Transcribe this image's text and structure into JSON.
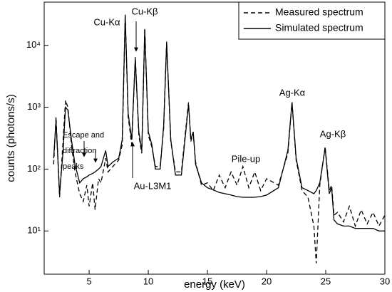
{
  "chart_data": {
    "type": "line",
    "xlabel": "energy (keV)",
    "ylabel": "counts (photons/s)",
    "log_y": true,
    "legend": "upper right",
    "xlim": [
      1.2,
      30
    ],
    "ylim": [
      2,
      50000
    ],
    "xticks": [
      5,
      10,
      15,
      20,
      25,
      30
    ],
    "yticks": [
      {
        "value": 10,
        "label": "10¹"
      },
      {
        "value": 100,
        "label": "10²"
      },
      {
        "value": 1000,
        "label": "10³"
      },
      {
        "value": 10000,
        "label": "10⁴"
      }
    ],
    "annotations": [
      "Cu-Kα",
      "Cu-Kβ",
      "Escape and",
      "diffraction",
      "peaks",
      "Pile-up",
      "Ag-Kα",
      "Ag-Kβ",
      "Au-L3M1"
    ],
    "x": [
      2.0,
      2.2,
      2.5,
      2.8,
      3.0,
      3.2,
      3.5,
      3.8,
      4.2,
      4.5,
      4.8,
      5.0,
      5.3,
      5.5,
      5.8,
      6.0,
      6.4,
      6.6,
      7.0,
      7.5,
      7.8,
      8.05,
      8.3,
      8.6,
      8.9,
      9.2,
      9.45,
      9.7,
      10.0,
      10.3,
      10.6,
      11.0,
      11.3,
      11.55,
      11.9,
      12.3,
      12.8,
      13.4,
      13.6,
      13.8,
      14.0,
      14.5,
      15,
      15.5,
      16,
      16.5,
      17,
      17.5,
      18,
      18.5,
      19,
      19.5,
      20,
      21,
      21.8,
      22.15,
      22.5,
      23,
      23.5,
      24,
      24.2,
      24.5,
      24.95,
      25.3,
      25.5,
      25.7,
      26,
      26.5,
      27,
      27.5,
      28,
      28.5,
      29,
      29.5,
      30
    ],
    "series": [
      {
        "name": "Measured spectrum",
        "color": "#000000",
        "dash": "6,4",
        "values": [
          120,
          700,
          35,
          300,
          1300,
          1000,
          250,
          90,
          40,
          30,
          55,
          25,
          60,
          22,
          70,
          60,
          150,
          90,
          110,
          140,
          250,
          32000,
          700,
          250,
          6500,
          350,
          180,
          19000,
          350,
          230,
          110,
          110,
          450,
          11500,
          280,
          90,
          90,
          1200,
          280,
          380,
          130,
          55,
          60,
          45,
          80,
          50,
          90,
          55,
          110,
          50,
          90,
          45,
          70,
          55,
          180,
          1200,
          140,
          45,
          35,
          12,
          3,
          55,
          230,
          45,
          55,
          18,
          20,
          14,
          25,
          12,
          22,
          13,
          20,
          12,
          18
        ]
      },
      {
        "name": "Simulated spectrum",
        "color": "#000000",
        "values": [
          150,
          600,
          40,
          200,
          1000,
          900,
          300,
          120,
          60,
          70,
          75,
          80,
          85,
          90,
          100,
          110,
          200,
          110,
          130,
          150,
          300,
          30000,
          800,
          300,
          6000,
          400,
          200,
          18000,
          400,
          250,
          100,
          100,
          500,
          11000,
          300,
          80,
          80,
          1100,
          300,
          400,
          120,
          60,
          50,
          46,
          42,
          40,
          38,
          36,
          35,
          35,
          35,
          36,
          38,
          50,
          200,
          1200,
          150,
          50,
          45,
          40,
          45,
          60,
          220,
          40,
          50,
          15,
          13,
          12,
          12,
          11,
          11,
          11,
          11,
          10,
          10
        ]
      }
    ]
  }
}
